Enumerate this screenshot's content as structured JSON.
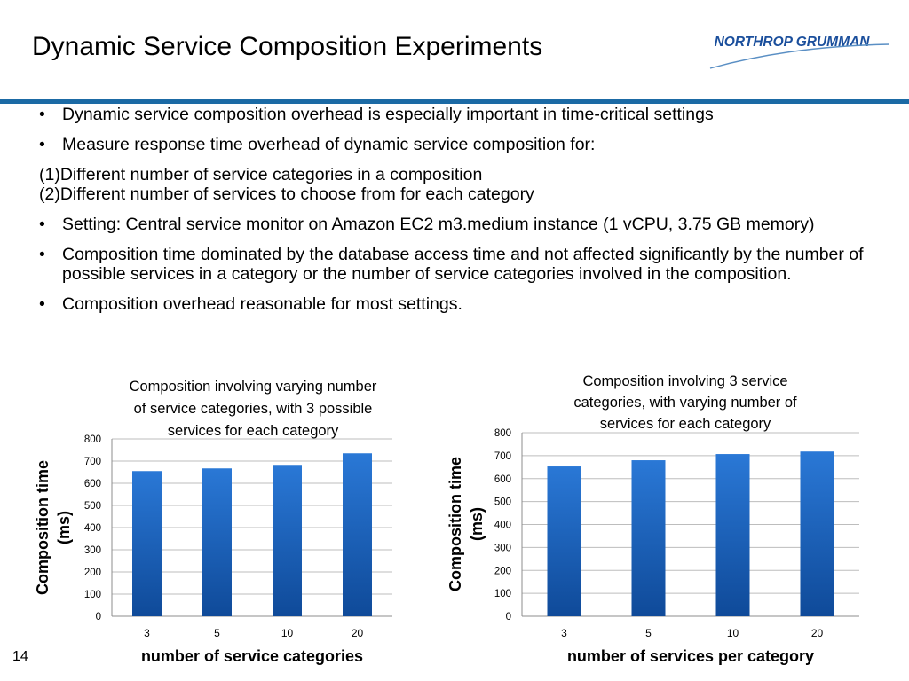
{
  "slide": {
    "title": "Dynamic Service Composition Experiments",
    "logo_text": "NORTHROP GRUMMAN",
    "page_number": "14",
    "accent_color": "#1b6aa5"
  },
  "bullets": {
    "b1": "Dynamic service composition overhead is especially important in time-critical settings",
    "b2": "Measure response time overhead of dynamic service composition for:",
    "n1": "(1)Different number of service categories in a composition",
    "n2": "(2)Different number of services to choose from for each category",
    "b3": "Setting: Central service monitor on Amazon EC2 m3.medium instance (1 vCPU, 3.75 GB memory)",
    "b4": "Composition time dominated by the database access time and not affected significantly by the number of possible services in a category or the number of service categories involved in the composition.",
    "b5": "Composition overhead reasonable for most settings."
  },
  "chart_data": [
    {
      "type": "bar",
      "title_lines": [
        "Composition involving varying number",
        "of service categories, with 3 possible",
        "services for each category"
      ],
      "categories": [
        "3",
        "5",
        "10",
        "20"
      ],
      "values": [
        655,
        667,
        683,
        735
      ],
      "xlabel": "number of service categories",
      "ylabel_lines": [
        "Composition time",
        "(ms)"
      ],
      "ylim": [
        0,
        800
      ],
      "yticks": [
        0,
        100,
        200,
        300,
        400,
        500,
        600,
        700,
        800
      ],
      "grid": true,
      "bar_color": "#1c64c0"
    },
    {
      "type": "bar",
      "title_lines": [
        "Composition involving 3 service",
        "categories, with varying number of",
        "services for each category"
      ],
      "categories": [
        "3",
        "5",
        "10",
        "20"
      ],
      "values": [
        653,
        680,
        707,
        718
      ],
      "xlabel": "number of services per category",
      "ylabel_lines": [
        "Composition time",
        "(ms)"
      ],
      "ylim": [
        0,
        800
      ],
      "yticks": [
        0,
        100,
        200,
        300,
        400,
        500,
        600,
        700,
        800
      ],
      "grid": true,
      "bar_color": "#1c64c0"
    }
  ]
}
